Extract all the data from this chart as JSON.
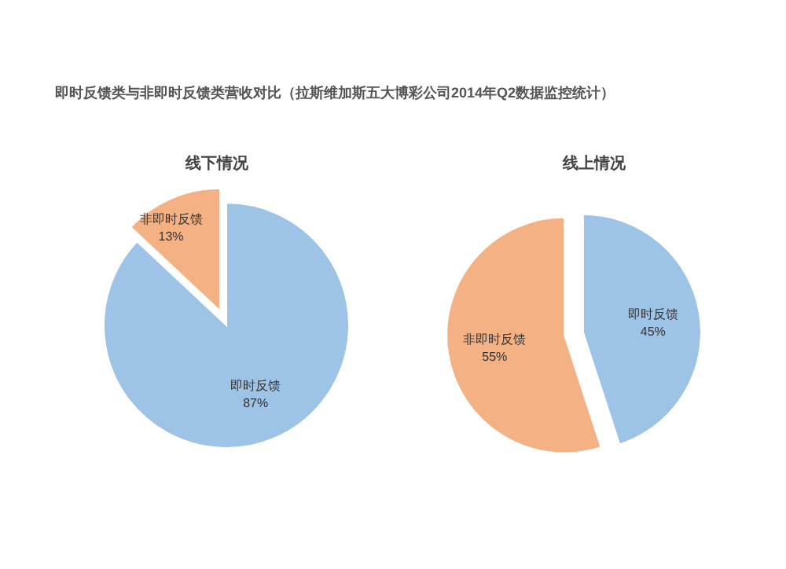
{
  "chart_data": [
    {
      "type": "pie",
      "title": "线下情况",
      "annotations": [
        "即时反馈类与非即时反馈类营收对比（拉斯维加斯五大博彩公司2014年Q2数据监控统计）"
      ],
      "categories": [
        "即时反馈",
        "非即时反馈"
      ],
      "values": [
        87,
        13
      ],
      "value_labels": [
        "87%",
        "13%"
      ],
      "colors": [
        "#9dc3e6",
        "#f4b183"
      ]
    },
    {
      "type": "pie",
      "title": "线上情况",
      "categories": [
        "即时反馈",
        "非即时反馈"
      ],
      "values": [
        45,
        55
      ],
      "value_labels": [
        "45%",
        "55%"
      ],
      "colors": [
        "#9dc3e6",
        "#f4b183"
      ]
    }
  ]
}
